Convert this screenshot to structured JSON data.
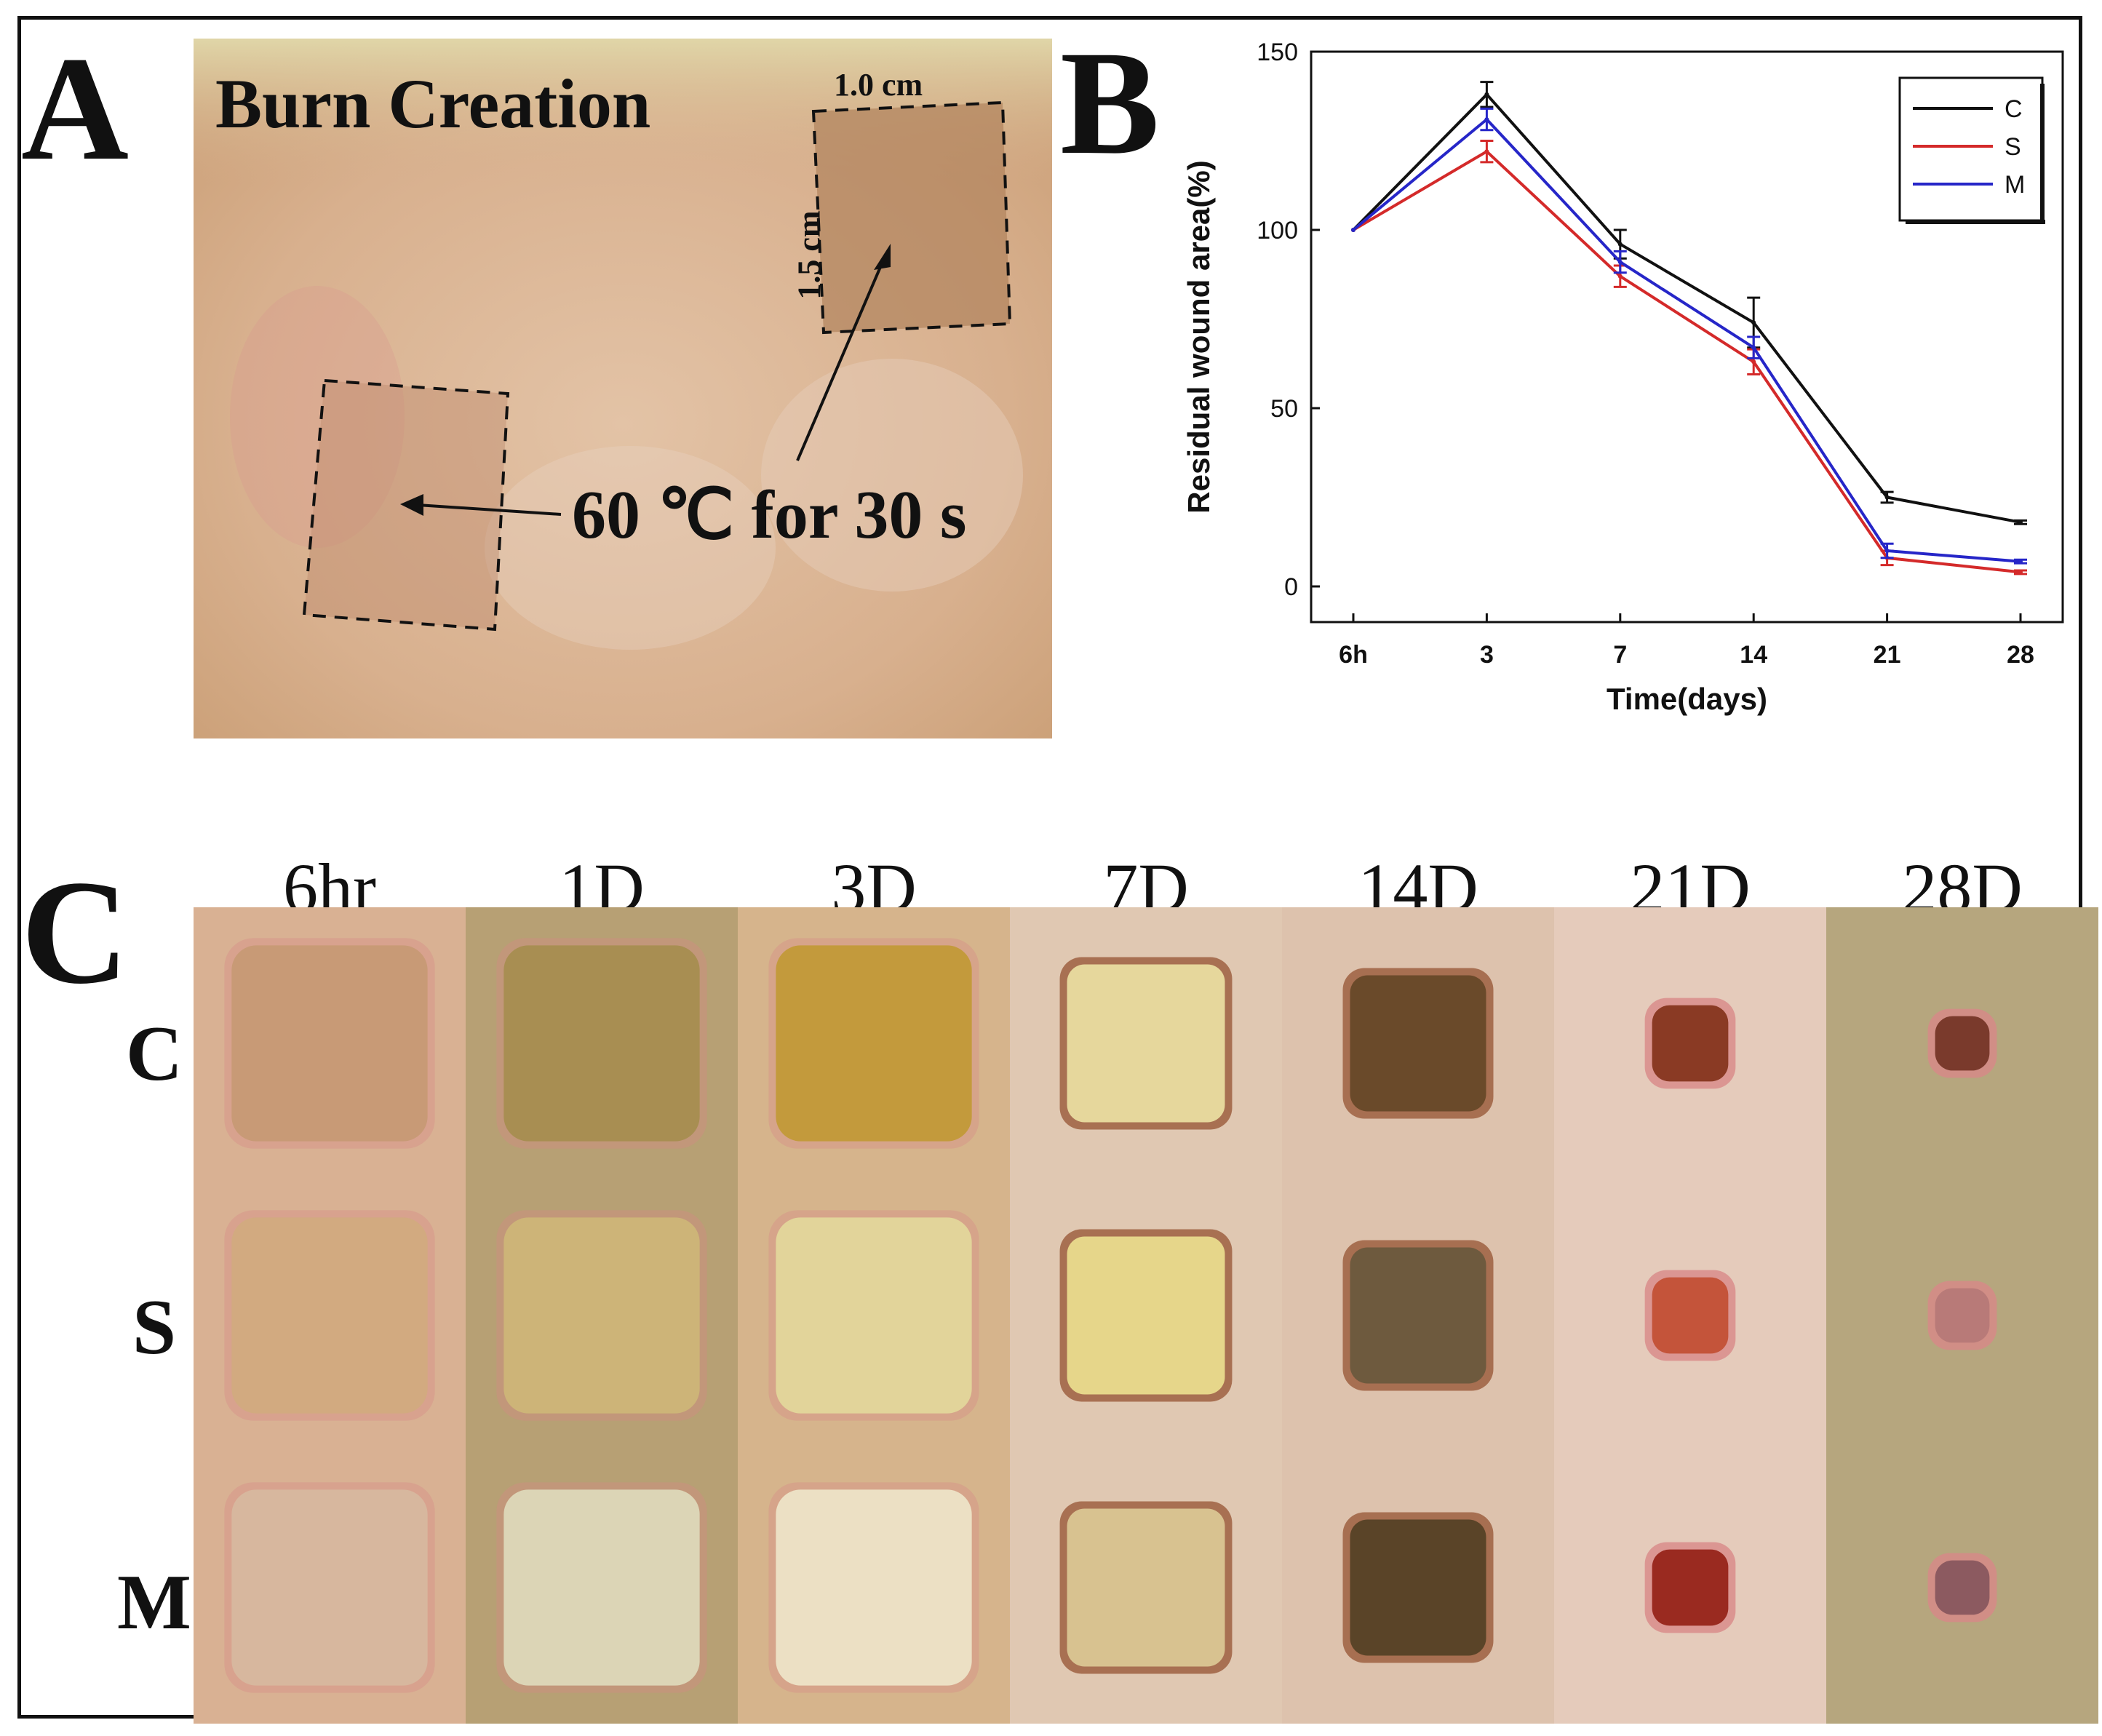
{
  "panel_labels": {
    "a": "A",
    "b": "B",
    "c": "C"
  },
  "panel_a": {
    "title": "Burn Creation",
    "width_label": "1.0 cm",
    "height_label": "1.5 cm",
    "annotation": "60 ℃ for 30 s"
  },
  "chart_data": {
    "type": "line",
    "xlabel": "Time(days)",
    "ylabel": "Residual wound area(%)",
    "categories": [
      "6h",
      "3",
      "7",
      "14",
      "21",
      "28"
    ],
    "yticks": [
      "0",
      "50",
      "100",
      "150"
    ],
    "ylim": [
      -10,
      150
    ],
    "legend_position": "top-right",
    "series": [
      {
        "name": "C",
        "color": "#111111",
        "values": [
          100,
          138,
          96,
          74,
          25,
          18
        ],
        "errors": [
          0,
          3.5,
          4,
          7,
          1.5,
          0.5
        ]
      },
      {
        "name": "S",
        "color": "#d42a2a",
        "values": [
          100,
          122,
          87,
          63,
          8,
          4
        ],
        "errors": [
          0,
          3,
          3,
          3.5,
          2,
          0.5
        ]
      },
      {
        "name": "M",
        "color": "#2626c8",
        "values": [
          100,
          131,
          91,
          67,
          10,
          7
        ],
        "errors": [
          0,
          3,
          3,
          3,
          2,
          0.5
        ]
      }
    ]
  },
  "panel_c": {
    "columns": [
      "6hr",
      "1D",
      "3D",
      "7D",
      "14D",
      "21D",
      "28D"
    ],
    "rows": [
      "C",
      "S",
      "M"
    ]
  }
}
